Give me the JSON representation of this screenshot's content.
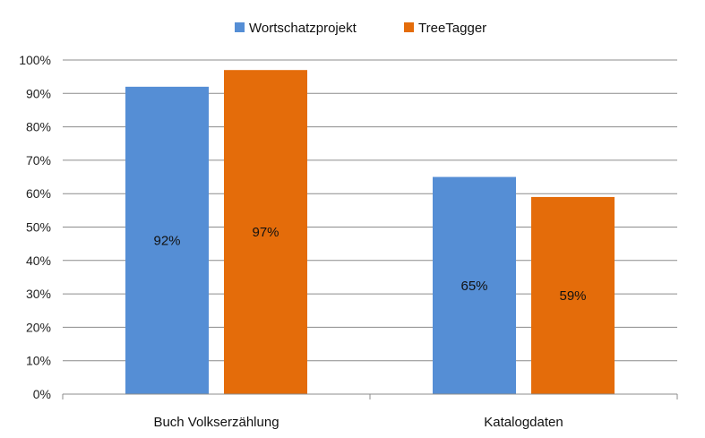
{
  "chart_data": {
    "type": "bar",
    "categories": [
      "Buch Volkserzählung",
      "Katalogdaten"
    ],
    "series": [
      {
        "name": "Wortschatzprojekt",
        "values": [
          92,
          65
        ],
        "labels": [
          "92%",
          "65%"
        ],
        "color": "#558ed5"
      },
      {
        "name": "TreeTagger",
        "values": [
          97,
          59
        ],
        "labels": [
          "97%",
          "59%"
        ],
        "color": "#e46c0a"
      }
    ],
    "y_ticks": [
      "0%",
      "10%",
      "20%",
      "30%",
      "40%",
      "50%",
      "60%",
      "70%",
      "80%",
      "90%",
      "100%"
    ],
    "ylim": [
      0,
      100
    ],
    "grid": true,
    "legend": "top-center",
    "xlabel": "",
    "ylabel": "",
    "title": ""
  }
}
